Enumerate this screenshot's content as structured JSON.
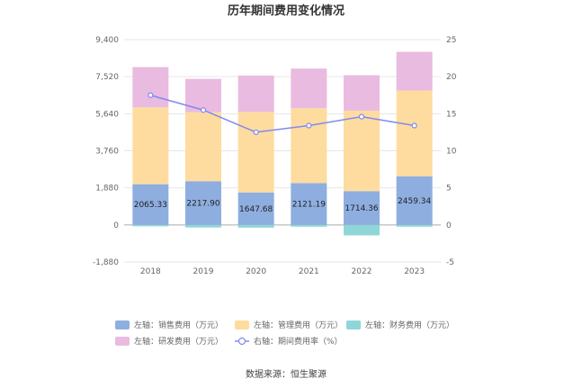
{
  "chart_data": {
    "type": "bar",
    "title": "历年期间费用变化情况",
    "categories": [
      "2018",
      "2019",
      "2020",
      "2021",
      "2022",
      "2023"
    ],
    "y_left": {
      "ticks": [
        "-1,880",
        "0",
        "1,880",
        "3,760",
        "5,640",
        "7,520",
        "9,400"
      ],
      "min": -1880,
      "max": 9400
    },
    "y_right": {
      "ticks": [
        "-5",
        "0",
        "5",
        "10",
        "15",
        "20",
        "25"
      ],
      "min": -5,
      "max": 25
    },
    "grid": true,
    "legend_position": "bottom",
    "series": [
      {
        "name": "左轴：销售费用（万元）",
        "type": "bar",
        "axis": "left",
        "color": "#8eaee0",
        "values": [
          2065.33,
          2217.9,
          1647.68,
          2121.19,
          1714.36,
          2459.34
        ],
        "labels": [
          "2065.33",
          "2217.90",
          "1647.68",
          "2121.19",
          "1714.36",
          "2459.34"
        ]
      },
      {
        "name": "左轴：管理费用（万元）",
        "type": "bar",
        "axis": "left",
        "color": "#fedc9f",
        "values": [
          3900,
          3500,
          4080,
          3800,
          4080,
          4360
        ]
      },
      {
        "name": "左轴：财务费用（万元）",
        "type": "bar",
        "axis": "left",
        "color": "#8fd6d8",
        "values": [
          -70,
          -130,
          -140,
          -90,
          -530,
          -90
        ]
      },
      {
        "name": "左轴：研发费用（万元）",
        "type": "bar",
        "axis": "left",
        "color": "#e9bbe0",
        "values": [
          2040,
          1690,
          1850,
          2010,
          1800,
          1960
        ]
      },
      {
        "name": "右轴：期间费用率（%）",
        "type": "line",
        "axis": "right",
        "color": "#8089f2",
        "values": [
          17.5,
          15.5,
          12.5,
          13.4,
          14.6,
          13.4
        ]
      }
    ]
  },
  "source": "数据来源：恒生聚源"
}
